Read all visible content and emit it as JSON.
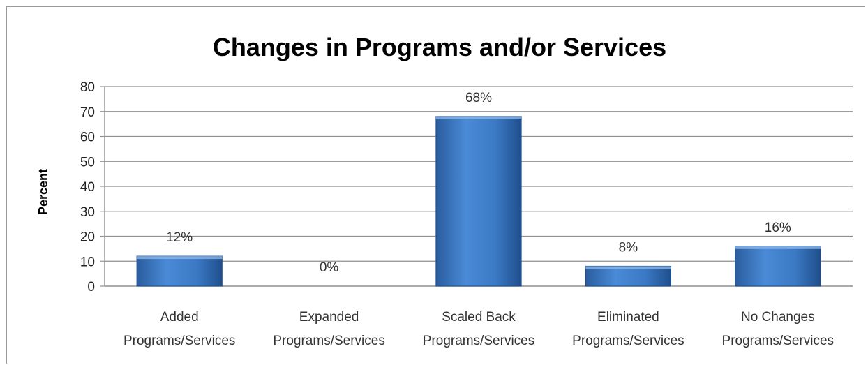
{
  "chart_data": {
    "type": "bar",
    "title": "Changes in Programs and/or Services",
    "xlabel": "",
    "ylabel": "Percent",
    "ylim": [
      0,
      80
    ],
    "y_ticks": [
      0,
      10,
      20,
      30,
      40,
      50,
      60,
      70,
      80
    ],
    "grid": true,
    "legend": "none",
    "categories": [
      [
        "Added",
        "Programs/Services"
      ],
      [
        "Expanded",
        "Programs/Services"
      ],
      [
        "Scaled Back",
        "Programs/Services"
      ],
      [
        "Eliminated",
        "Programs/Services"
      ],
      [
        "No Changes",
        "Programs/Services"
      ]
    ],
    "values": [
      12,
      0,
      68,
      8,
      16
    ],
    "data_labels": [
      "12%",
      "0%",
      "68%",
      "8%",
      "16%"
    ],
    "bar_color": "#3a78c3"
  }
}
